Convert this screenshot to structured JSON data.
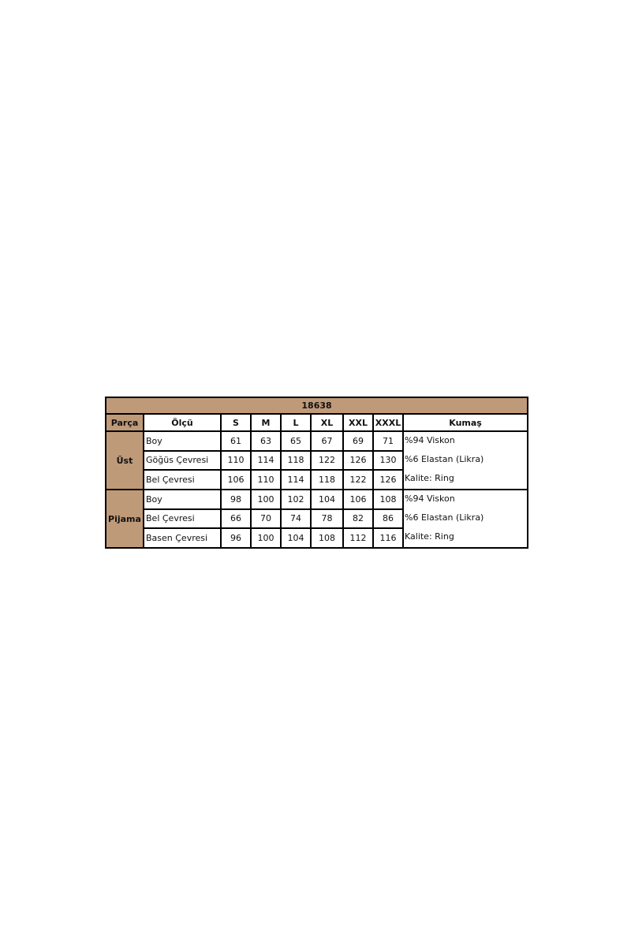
{
  "title": "18638",
  "headers": [
    "Parça",
    "Ölçü",
    "S",
    "M",
    "L",
    "XL",
    "XXL",
    "XXXL",
    "Kumaş"
  ],
  "groups": [
    {
      "part": "Üst",
      "rows": [
        {
          "measure": "Boy",
          "values": [
            "61",
            "63",
            "65",
            "67",
            "69",
            "71"
          ]
        },
        {
          "measure": "Göğüs Çevresi",
          "values": [
            "110",
            "114",
            "118",
            "122",
            "126",
            "130"
          ]
        },
        {
          "measure": "Bel Çevresi",
          "values": [
            "106",
            "110",
            "114",
            "118",
            "122",
            "126"
          ]
        }
      ],
      "fabric": [
        "%94 Viskon",
        "%6 Elastan (Likra)",
        "Kalite: Ring"
      ]
    },
    {
      "part": "Pijama",
      "rows": [
        {
          "measure": "Boy",
          "values": [
            "98",
            "100",
            "102",
            "104",
            "106",
            "108"
          ]
        },
        {
          "measure": "Bel Çevresi",
          "values": [
            "66",
            "70",
            "74",
            "78",
            "82",
            "86"
          ]
        },
        {
          "measure": "Basen Çevresi",
          "values": [
            "96",
            "100",
            "104",
            "108",
            "112",
            "116"
          ]
        }
      ],
      "fabric": [
        "%94 Viskon",
        "%6 Elastan (Likra)",
        "Kalite: Ring"
      ]
    }
  ],
  "colors": {
    "header_bg": "#bf9a79",
    "border": "#000000"
  }
}
